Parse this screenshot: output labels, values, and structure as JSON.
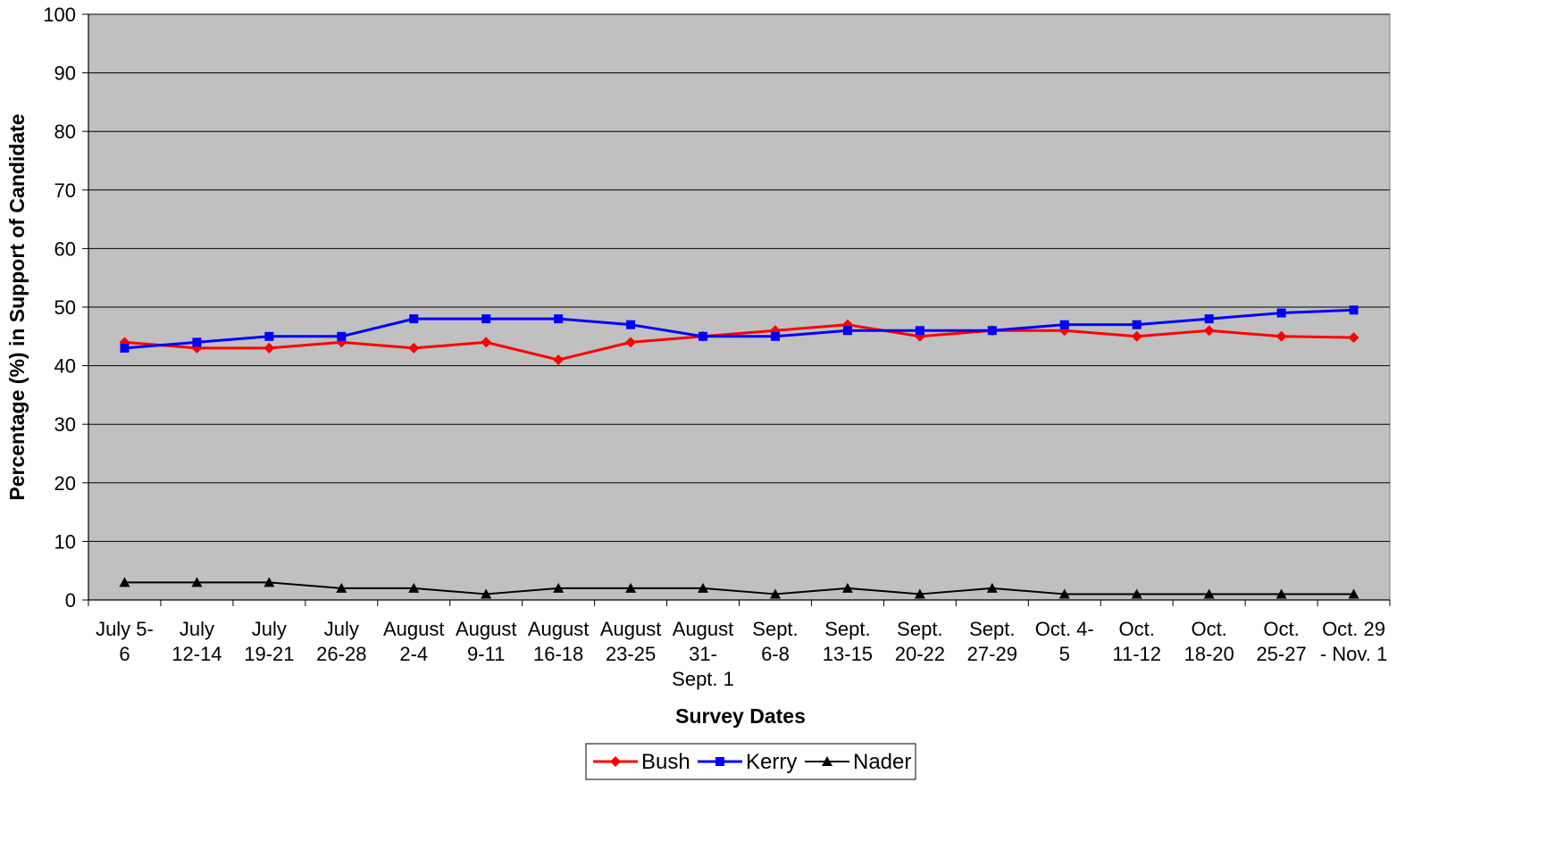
{
  "chart_data": {
    "type": "line",
    "title": "",
    "xlabel": "Survey Dates",
    "ylabel": "Percentage (%) in Support of Candidate",
    "ylim": [
      0,
      100
    ],
    "yticks": [
      0,
      10,
      20,
      30,
      40,
      50,
      60,
      70,
      80,
      90,
      100
    ],
    "grid": "horizontal",
    "legend_position": "bottom",
    "plot_background": "#C0C0C0",
    "categories": [
      [
        "July 5-",
        "6"
      ],
      [
        "July",
        "12-14"
      ],
      [
        "July",
        "19-21"
      ],
      [
        "July",
        "26-28"
      ],
      [
        "August",
        "2-4"
      ],
      [
        "August",
        "9-11"
      ],
      [
        "August",
        "16-18"
      ],
      [
        "August",
        "23-25"
      ],
      [
        "August",
        "31-",
        "Sept. 1"
      ],
      [
        "Sept.",
        "6-8"
      ],
      [
        "Sept.",
        "13-15"
      ],
      [
        "Sept.",
        "20-22"
      ],
      [
        "Sept.",
        "27-29"
      ],
      [
        "Oct. 4-",
        "5"
      ],
      [
        "Oct.",
        "11-12"
      ],
      [
        "Oct.",
        "18-20"
      ],
      [
        "Oct.",
        "25-27"
      ],
      [
        "Oct. 29",
        "- Nov. 1"
      ]
    ],
    "series": [
      {
        "name": "Bush",
        "color": "#FF0000",
        "marker": "diamond",
        "values": [
          44,
          43,
          43,
          44,
          43,
          44,
          41,
          44,
          45,
          46,
          47,
          45,
          46,
          46,
          45,
          46,
          45,
          44.8
        ]
      },
      {
        "name": "Kerry",
        "color": "#0000FF",
        "marker": "square",
        "values": [
          43,
          44,
          45,
          45,
          48,
          48,
          48,
          47,
          45,
          45,
          46,
          46,
          46,
          47,
          47,
          48,
          49,
          49.5
        ]
      },
      {
        "name": "Nader",
        "color": "#000000",
        "marker": "triangle",
        "values": [
          3,
          3,
          3,
          2,
          2,
          1,
          2,
          2,
          2,
          1,
          2,
          1,
          2,
          1,
          1,
          1,
          1,
          1
        ]
      }
    ]
  }
}
